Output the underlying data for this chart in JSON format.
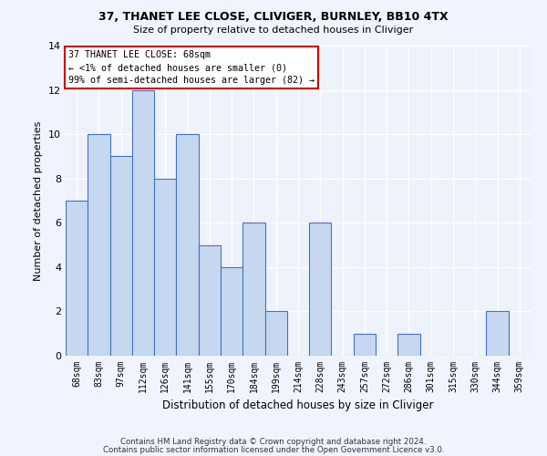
{
  "title1": "37, THANET LEE CLOSE, CLIVIGER, BURNLEY, BB10 4TX",
  "title2": "Size of property relative to detached houses in Cliviger",
  "xlabel": "Distribution of detached houses by size in Cliviger",
  "ylabel": "Number of detached properties",
  "categories": [
    "68sqm",
    "83sqm",
    "97sqm",
    "112sqm",
    "126sqm",
    "141sqm",
    "155sqm",
    "170sqm",
    "184sqm",
    "199sqm",
    "214sqm",
    "228sqm",
    "243sqm",
    "257sqm",
    "272sqm",
    "286sqm",
    "301sqm",
    "315sqm",
    "330sqm",
    "344sqm",
    "359sqm"
  ],
  "values": [
    7,
    10,
    9,
    12,
    8,
    10,
    5,
    4,
    6,
    2,
    0,
    6,
    0,
    1,
    0,
    1,
    0,
    0,
    0,
    2,
    0
  ],
  "bar_color": "#c5d8f0",
  "bar_edge_color": "#4472c4",
  "annotation_line1": "37 THANET LEE CLOSE: 68sqm",
  "annotation_line2": "← <1% of detached houses are smaller (0)",
  "annotation_line3": "99% of semi-detached houses are larger (82) →",
  "annotation_box_color": "#ffffff",
  "annotation_box_edge_color": "#cc0000",
  "ylim": [
    0,
    14
  ],
  "yticks": [
    0,
    2,
    4,
    6,
    8,
    10,
    12,
    14
  ],
  "background_color": "#eef2fb",
  "grid_color": "#ffffff",
  "footer1": "Contains HM Land Registry data © Crown copyright and database right 2024.",
  "footer2": "Contains public sector information licensed under the Open Government Licence v3.0."
}
